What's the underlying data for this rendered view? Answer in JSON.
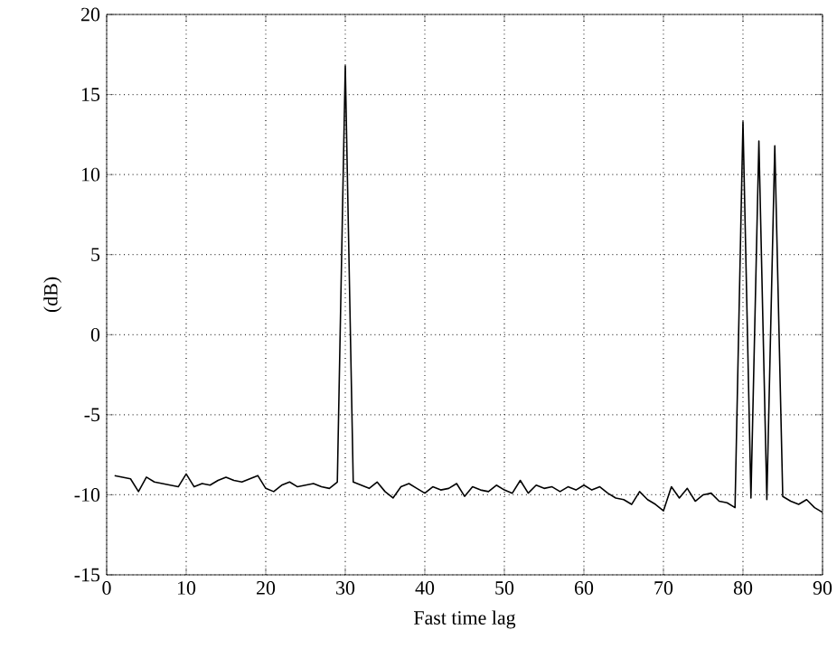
{
  "chart_data": {
    "type": "line",
    "xlabel": "Fast time lag",
    "ylabel": "(dB)",
    "x": [
      1,
      2,
      3,
      4,
      5,
      6,
      7,
      8,
      9,
      10,
      11,
      12,
      13,
      14,
      15,
      16,
      17,
      18,
      19,
      20,
      21,
      22,
      23,
      24,
      25,
      26,
      27,
      28,
      29,
      30,
      31,
      32,
      33,
      34,
      35,
      36,
      37,
      38,
      39,
      40,
      41,
      42,
      43,
      44,
      45,
      46,
      47,
      48,
      49,
      50,
      51,
      52,
      53,
      54,
      55,
      56,
      57,
      58,
      59,
      60,
      61,
      62,
      63,
      64,
      65,
      66,
      67,
      68,
      69,
      70,
      71,
      72,
      73,
      74,
      75,
      76,
      77,
      78,
      79,
      80,
      81,
      82,
      83,
      84,
      85,
      86,
      87,
      88,
      89,
      90
    ],
    "series": [
      {
        "color": "#000000",
        "values": [
          -8.8,
          -8.9,
          -9,
          -9.8,
          -8.9,
          -9.2,
          -9.3,
          -9.4,
          -9.5,
          -8.7,
          -9.5,
          -9.3,
          -9.4,
          -9.1,
          -8.9,
          -9.1,
          -9.2,
          -9,
          -8.8,
          -9.6,
          -9.8,
          -9.4,
          -9.2,
          -9.5,
          -9.4,
          -9.3,
          -9.5,
          -9.6,
          -9.2,
          16.8,
          -9.2,
          -9.4,
          -9.6,
          -9.2,
          -9.8,
          -10.2,
          -9.5,
          -9.3,
          -9.6,
          -9.9,
          -9.5,
          -9.7,
          -9.6,
          -9.3,
          -10.1,
          -9.5,
          -9.7,
          -9.8,
          -9.4,
          -9.7,
          -9.9,
          -9.1,
          -9.9,
          -9.4,
          -9.6,
          -9.5,
          -9.8,
          -9.5,
          -9.7,
          -9.4,
          -9.7,
          -9.5,
          -9.9,
          -10.2,
          -10.3,
          -10.6,
          -9.8,
          -10.3,
          -10.6,
          -11,
          -9.5,
          -10.2,
          -9.6,
          -10.4,
          -10,
          -9.9,
          -10.4,
          -10.5,
          -10.8,
          13.3,
          -10.2,
          12.1,
          -10.3,
          11.8,
          -10.1,
          -10.4,
          -10.6,
          -10.3,
          -10.8,
          -11.1
        ]
      }
    ],
    "xlim": [
      0,
      90
    ],
    "xticks": [
      0,
      10,
      20,
      30,
      40,
      50,
      60,
      70,
      80,
      90
    ],
    "ylim": [
      -15,
      20
    ],
    "yticks": [
      -15,
      -10,
      -5,
      0,
      5,
      10,
      15,
      20
    ],
    "grid": true,
    "line_style": "solid",
    "marker": "none"
  }
}
